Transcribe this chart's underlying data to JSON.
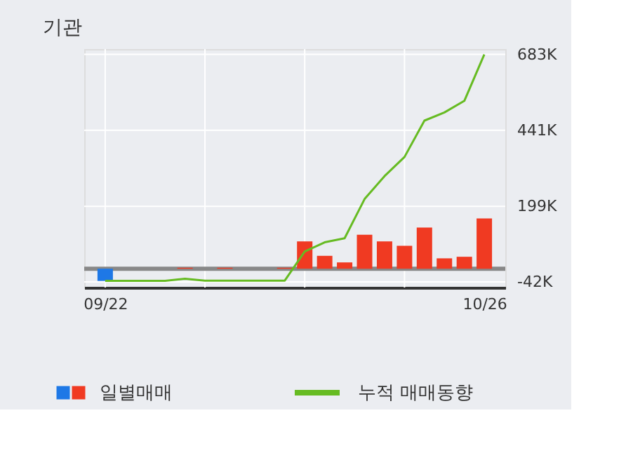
{
  "chart_data": {
    "type": "bar",
    "title": "기관",
    "categories": [
      "09/22",
      null,
      null,
      null,
      null,
      null,
      null,
      null,
      null,
      null,
      null,
      null,
      null,
      null,
      null,
      null,
      null,
      null,
      null,
      "10/26"
    ],
    "series": [
      {
        "name": "일별매매",
        "colors": [
          "#1e78e6",
          "#f03a22",
          "#f03a22",
          "#f03a22",
          "#f03a22",
          "#f03a22",
          "#f03a22",
          "#f03a22",
          "#f03a22",
          "#f03a22",
          "#f03a22",
          "#f03a22",
          "#f03a22",
          "#f03a22",
          "#f03a22",
          "#f03a22",
          "#f03a22",
          "#f03a22",
          "#f03a22",
          "#f03a22"
        ],
        "values": [
          -39,
          0,
          0,
          0,
          3,
          0,
          3,
          0,
          0,
          3,
          87,
          41,
          20,
          108,
          87,
          73,
          131,
          33,
          38,
          160
        ]
      },
      {
        "name": "누적 매매동향",
        "type": "line",
        "color": "#66bb22",
        "values": [
          -39,
          -39,
          -39,
          -39,
          -32,
          -38,
          -38,
          -38,
          -38,
          -38,
          55,
          84,
          97,
          222,
          295,
          356,
          472,
          498,
          535,
          683
        ]
      }
    ],
    "ylim": [
      -60,
      700
    ],
    "yticks": [
      {
        "value": 683,
        "label": "683K"
      },
      {
        "value": 441,
        "label": "441K"
      },
      {
        "value": 199,
        "label": "199K"
      },
      {
        "value": -42,
        "label": "-42K"
      }
    ],
    "ref_lines": [
      {
        "axis": "y",
        "value": 0,
        "color": "#888888"
      }
    ],
    "grid": true,
    "legend": "bottom"
  }
}
